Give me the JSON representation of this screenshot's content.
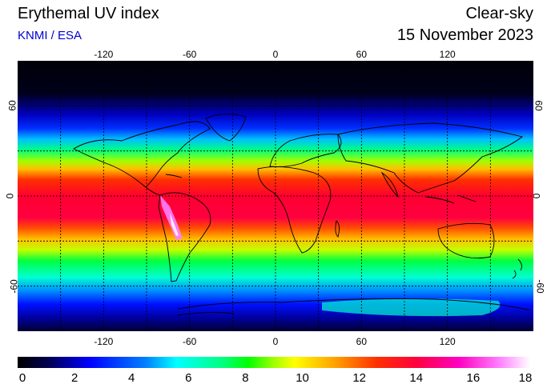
{
  "header": {
    "title": "Erythemal UV index",
    "subtitle": "KNMI / ESA",
    "mode": "Clear-sky",
    "date": "15 November 2023"
  },
  "map": {
    "lon_ticks": [
      "-120",
      "-60",
      "0",
      "60",
      "120"
    ],
    "lon_values": [
      -120,
      -60,
      0,
      60,
      120
    ],
    "lat_ticks": [
      "60",
      "0",
      "-60"
    ],
    "lat_values": [
      60,
      0,
      -60
    ],
    "gridline_lats": [
      60,
      30,
      0,
      -30,
      -60
    ],
    "gridline_lons": [
      -150,
      -120,
      -90,
      -60,
      -30,
      0,
      30,
      60,
      90,
      120,
      150
    ],
    "extent": {
      "lon": [
        -180,
        180
      ],
      "lat": [
        -90,
        90
      ]
    },
    "grid": true
  },
  "colorbar": {
    "ticks": [
      "0",
      "2",
      "4",
      "6",
      "8",
      "10",
      "12",
      "14",
      "16",
      "18"
    ],
    "range": [
      0,
      18
    ]
  }
}
